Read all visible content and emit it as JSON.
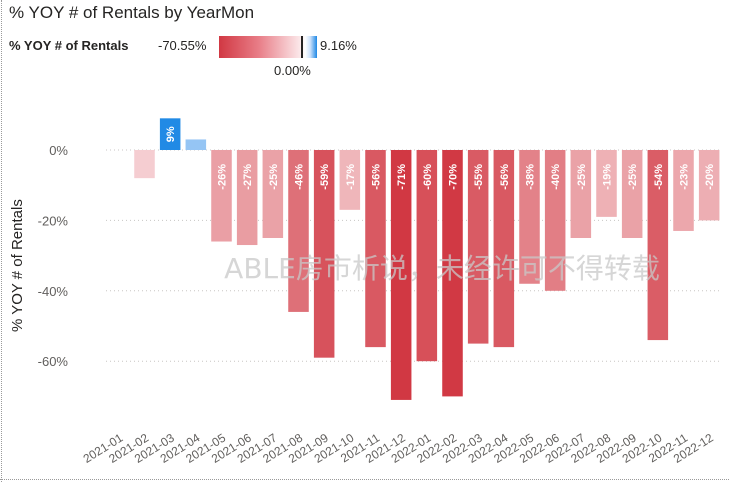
{
  "chart_data": {
    "type": "bar",
    "title": "% YOY # of Rentals by YearMon",
    "xlabel": "",
    "ylabel": "% YOY # of Rentals",
    "ylim": [
      -75,
      15
    ],
    "yticks": [
      0,
      -20,
      -40,
      -60
    ],
    "ytick_labels": [
      "0%",
      "-20%",
      "-40%",
      "-60%"
    ],
    "categories": [
      "2021-01",
      "2021-02",
      "2021-03",
      "2021-04",
      "2021-05",
      "2021-06",
      "2021-07",
      "2021-08",
      "2021-09",
      "2021-10",
      "2021-11",
      "2021-12",
      "2022-01",
      "2022-02",
      "2022-03",
      "2022-04",
      "2022-05",
      "2022-06",
      "2022-07",
      "2022-08",
      "2022-09",
      "2022-10",
      "2022-11",
      "2022-12"
    ],
    "values": [
      0,
      -8,
      9,
      3,
      -26,
      -27,
      -25,
      -46,
      -59,
      -17,
      -56,
      -71,
      -60,
      -70,
      -55,
      -56,
      -38,
      -40,
      -25,
      -19,
      -25,
      -54,
      -23,
      -20
    ],
    "data_labels": [
      "",
      "",
      "9%",
      "",
      "-26%",
      "-27%",
      "-25%",
      "-46%",
      "-59%",
      "-17%",
      "-56%",
      "-71%",
      "-60%",
      "-70%",
      "-55%",
      "-56%",
      "-38%",
      "-40%",
      "-25%",
      "-19%",
      "-25%",
      "-54%",
      "-23%",
      "-20%"
    ],
    "legend": {
      "label": "% YOY # of Rentals",
      "min_label": "-70.55%",
      "max_label": "9.16%",
      "center_label": "0.00%",
      "min_value": -70.55,
      "max_value": 9.16,
      "center_value": 0
    },
    "watermark": "ABLE房市析说，未经许可不得转载",
    "colors": {
      "negative": "#d13843",
      "negative_light": "#fbe6e8",
      "positive": "#1e88e5",
      "positive_light": "#cfe3fb",
      "text": "#252423",
      "axis_text": "#605e5c",
      "grid": "#c8c6c4",
      "watermark": "#c8c8c8"
    }
  }
}
